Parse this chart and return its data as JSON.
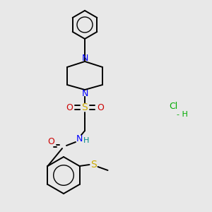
{
  "bg_color": "#e8e8e8",
  "black": "#000000",
  "blue": "#0000ff",
  "red": "#cc0000",
  "yellow_s": "#ccaa00",
  "green": "#00aa00",
  "NH_color": "#008888",
  "piperazine_top_N": "N",
  "piperazine_bot_N": "N",
  "S_sulfonyl_label": "S",
  "O_left_label": "O",
  "O_right_label": "O",
  "NH_label": "N",
  "H_label": "H",
  "O_carbonyl_label": "O",
  "S_thio_label": "S",
  "HCl_label": "Cl",
  "H_hcl_label": "- H"
}
